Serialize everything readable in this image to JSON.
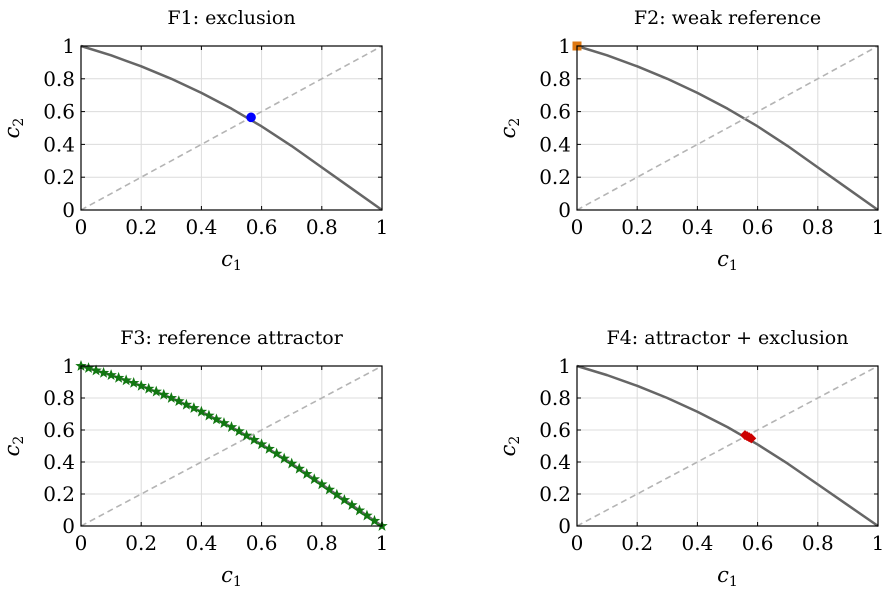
{
  "figure": {
    "chart_data": [
      {
        "type": "line",
        "title": "F1: exclusion",
        "xlabel": "c",
        "xlabel_sub": "1",
        "ylabel": "c",
        "ylabel_sub": "2",
        "xlim": [
          0,
          1
        ],
        "ylim": [
          0,
          1
        ],
        "x_ticks": [
          "0",
          "0.2",
          "0.4",
          "0.6",
          "0.8",
          "1"
        ],
        "y_ticks": [
          "0",
          "0.2",
          "0.4",
          "0.6",
          "0.8",
          "1"
        ],
        "grid": true,
        "series": [
          {
            "kind": "curve",
            "x": [
              0,
              0.1,
              0.2,
              0.3,
              0.4,
              0.5,
              0.6,
              0.7,
              0.8,
              0.9,
              1.0
            ],
            "y": [
              1.0,
              0.943,
              0.876,
              0.8,
              0.714,
              0.618,
              0.51,
              0.39,
              0.26,
              0.13,
              0.0
            ],
            "color": "#666666"
          },
          {
            "kind": "diagonal",
            "x": [
              0,
              1
            ],
            "y": [
              0,
              1
            ],
            "color": "#b4b4b4"
          },
          {
            "kind": "markers",
            "marker": "circle",
            "x": [
              0.565
            ],
            "y": [
              0.565
            ],
            "color": "#0000ff"
          }
        ]
      },
      {
        "type": "line",
        "title": "F2: weak reference",
        "xlabel": "c",
        "xlabel_sub": "1",
        "ylabel": "c",
        "ylabel_sub": "2",
        "xlim": [
          0,
          1
        ],
        "ylim": [
          0,
          1
        ],
        "x_ticks": [
          "0",
          "0.2",
          "0.4",
          "0.6",
          "0.8",
          "1"
        ],
        "y_ticks": [
          "0",
          "0.2",
          "0.4",
          "0.6",
          "0.8",
          "1"
        ],
        "grid": true,
        "series": [
          {
            "kind": "curve",
            "x": [
              0,
              0.1,
              0.2,
              0.3,
              0.4,
              0.5,
              0.6,
              0.7,
              0.8,
              0.9,
              1.0
            ],
            "y": [
              1.0,
              0.943,
              0.876,
              0.8,
              0.714,
              0.618,
              0.51,
              0.39,
              0.26,
              0.13,
              0.0
            ],
            "color": "#666666"
          },
          {
            "kind": "diagonal",
            "x": [
              0,
              1
            ],
            "y": [
              0,
              1
            ],
            "color": "#b4b4b4"
          },
          {
            "kind": "markers",
            "marker": "square",
            "x": [
              0.0
            ],
            "y": [
              1.0
            ],
            "color": "#dd7711"
          }
        ]
      },
      {
        "type": "line",
        "title": "F3: reference attractor",
        "xlabel": "c",
        "xlabel_sub": "1",
        "ylabel": "c",
        "ylabel_sub": "2",
        "xlim": [
          0,
          1
        ],
        "ylim": [
          0,
          1
        ],
        "x_ticks": [
          "0",
          "0.2",
          "0.4",
          "0.6",
          "0.8",
          "1"
        ],
        "y_ticks": [
          "0",
          "0.2",
          "0.4",
          "0.6",
          "0.8",
          "1"
        ],
        "grid": true,
        "series": [
          {
            "kind": "curve",
            "x": [
              0,
              0.1,
              0.2,
              0.3,
              0.4,
              0.5,
              0.6,
              0.7,
              0.8,
              0.9,
              1.0
            ],
            "y": [
              1.0,
              0.943,
              0.876,
              0.8,
              0.714,
              0.618,
              0.51,
              0.39,
              0.26,
              0.13,
              0.0
            ],
            "color": "#666666"
          },
          {
            "kind": "diagonal",
            "x": [
              0,
              1
            ],
            "y": [
              0,
              1
            ],
            "color": "#b4b4b4"
          },
          {
            "kind": "markers",
            "marker": "star",
            "x": [
              0.0,
              0.025,
              0.05,
              0.075,
              0.1,
              0.125,
              0.15,
              0.175,
              0.2,
              0.225,
              0.25,
              0.275,
              0.3,
              0.325,
              0.35,
              0.375,
              0.4,
              0.425,
              0.45,
              0.475,
              0.5,
              0.525,
              0.55,
              0.575,
              0.6,
              0.625,
              0.65,
              0.675,
              0.7,
              0.725,
              0.75,
              0.775,
              0.8,
              0.825,
              0.85,
              0.875,
              0.9,
              0.925,
              0.95,
              0.975,
              1.0
            ],
            "y": [
              1.0,
              0.987,
              0.972,
              0.957,
              0.943,
              0.926,
              0.91,
              0.894,
              0.876,
              0.858,
              0.84,
              0.82,
              0.8,
              0.78,
              0.758,
              0.737,
              0.714,
              0.69,
              0.666,
              0.643,
              0.618,
              0.592,
              0.565,
              0.538,
              0.51,
              0.482,
              0.452,
              0.421,
              0.39,
              0.358,
              0.325,
              0.292,
              0.26,
              0.227,
              0.195,
              0.162,
              0.13,
              0.097,
              0.065,
              0.032,
              0.0
            ],
            "color": "#117711"
          }
        ]
      },
      {
        "type": "line",
        "title": "F4: attractor + exclusion",
        "xlabel": "c",
        "xlabel_sub": "1",
        "ylabel": "c",
        "ylabel_sub": "2",
        "xlim": [
          0,
          1
        ],
        "ylim": [
          0,
          1
        ],
        "x_ticks": [
          "0",
          "0.2",
          "0.4",
          "0.6",
          "0.8",
          "1"
        ],
        "y_ticks": [
          "0",
          "0.2",
          "0.4",
          "0.6",
          "0.8",
          "1"
        ],
        "grid": true,
        "series": [
          {
            "kind": "curve",
            "x": [
              0,
              0.1,
              0.2,
              0.3,
              0.4,
              0.5,
              0.6,
              0.7,
              0.8,
              0.9,
              1.0
            ],
            "y": [
              1.0,
              0.943,
              0.876,
              0.8,
              0.714,
              0.618,
              0.51,
              0.39,
              0.26,
              0.13,
              0.0
            ],
            "color": "#666666"
          },
          {
            "kind": "diagonal",
            "x": [
              0,
              1
            ],
            "y": [
              0,
              1
            ],
            "color": "#b4b4b4"
          },
          {
            "kind": "markers",
            "marker": "diamond",
            "x": [
              0.558,
              0.565,
              0.572,
              0.579
            ],
            "y": [
              0.568,
              0.562,
              0.555,
              0.548
            ],
            "color": "#cc0000"
          }
        ]
      }
    ]
  }
}
